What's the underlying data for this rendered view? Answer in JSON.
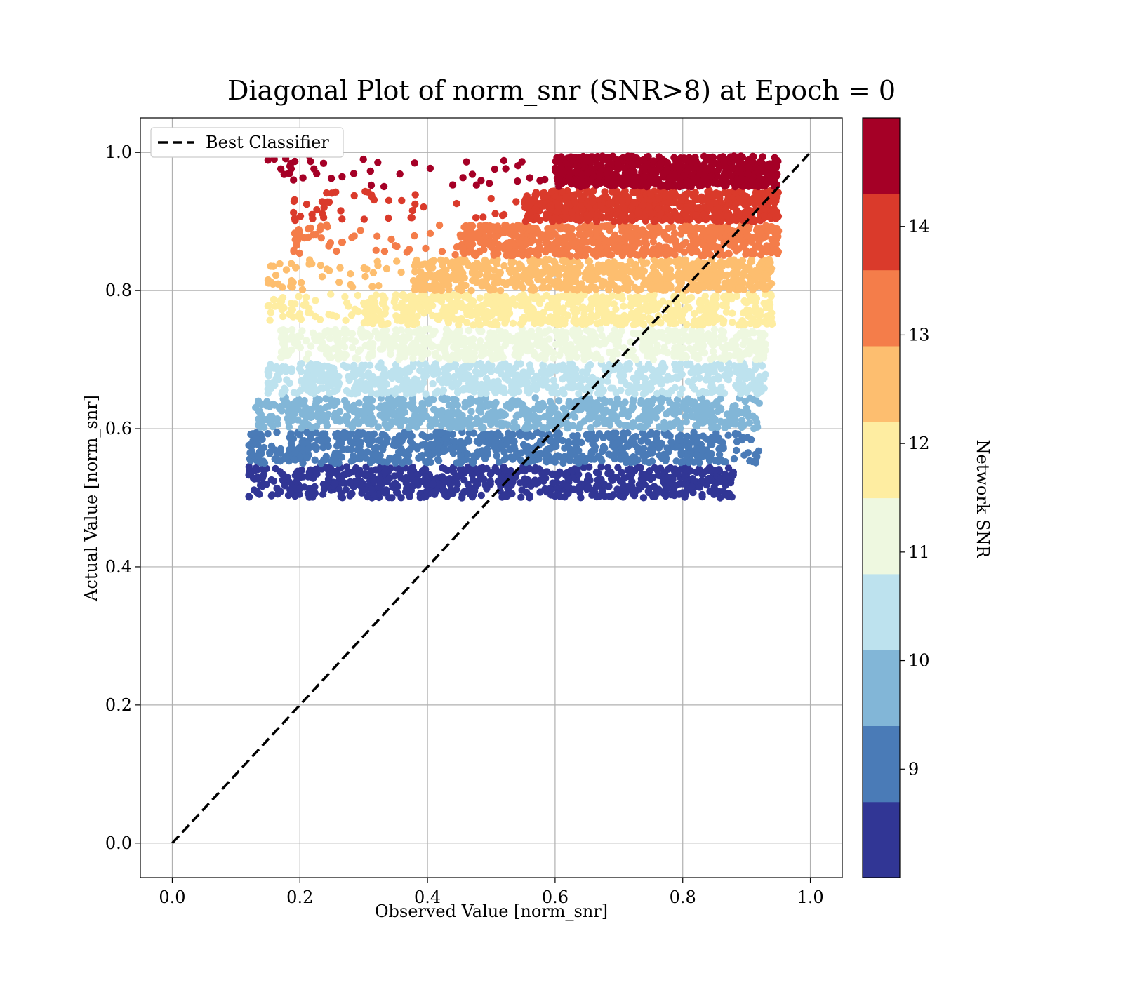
{
  "chart_data": {
    "type": "scatter",
    "title": "Diagonal Plot of norm_snr (SNR>8) at Epoch = 0",
    "xlabel": "Observed Value [norm_snr]",
    "ylabel": "Actual Value [norm_snr]",
    "xlim": [
      -0.05,
      1.05
    ],
    "ylim": [
      -0.05,
      1.05
    ],
    "xticks": [
      "0.0",
      "0.2",
      "0.4",
      "0.6",
      "0.8",
      "1.0"
    ],
    "yticks": [
      "0.0",
      "0.2",
      "0.4",
      "0.6",
      "0.8",
      "1.0"
    ],
    "grid": true,
    "legend": {
      "position": "top-left",
      "entries": [
        {
          "label": "Best Classifier",
          "style": "dashed",
          "color": "#000000"
        }
      ]
    },
    "diagonal_line": {
      "x": [
        0,
        1
      ],
      "y": [
        0,
        1
      ]
    },
    "colorbar": {
      "label": "Network SNR",
      "range": [
        8,
        15
      ],
      "ticks": [
        "9",
        "10",
        "11",
        "12",
        "13",
        "14"
      ],
      "colors": [
        "#313695",
        "#4a7bb7",
        "#82b6d7",
        "#bde2ee",
        "#eef8e0",
        "#feeda1",
        "#fdbe6f",
        "#f47d4a",
        "#da3a2b",
        "#a50026"
      ]
    },
    "bands": [
      {
        "y_range": [
          0.5,
          0.545
        ],
        "x_core": [
          0.18,
          0.86
        ],
        "x_tail": [
          0.12,
          0.88
        ],
        "color": "#313695"
      },
      {
        "y_range": [
          0.55,
          0.595
        ],
        "x_core": [
          0.18,
          0.87
        ],
        "x_tail": [
          0.12,
          0.92
        ],
        "color": "#4a7bb7"
      },
      {
        "y_range": [
          0.6,
          0.645
        ],
        "x_core": [
          0.19,
          0.89
        ],
        "x_tail": [
          0.13,
          0.92
        ],
        "color": "#82b6d7"
      },
      {
        "y_range": [
          0.65,
          0.695
        ],
        "x_core": [
          0.2,
          0.91
        ],
        "x_tail": [
          0.15,
          0.93
        ],
        "color": "#bde2ee"
      },
      {
        "y_range": [
          0.7,
          0.745
        ],
        "x_core": [
          0.23,
          0.92
        ],
        "x_tail": [
          0.17,
          0.93
        ],
        "color": "#eef8e0"
      },
      {
        "y_range": [
          0.75,
          0.795
        ],
        "x_core": [
          0.3,
          0.93
        ],
        "x_tail": [
          0.15,
          0.94
        ],
        "color": "#feeda1"
      },
      {
        "y_range": [
          0.8,
          0.845
        ],
        "x_core": [
          0.38,
          0.93
        ],
        "x_tail": [
          0.15,
          0.94
        ],
        "color": "#fdbe6f"
      },
      {
        "y_range": [
          0.85,
          0.895
        ],
        "x_core": [
          0.45,
          0.94
        ],
        "x_tail": [
          0.19,
          0.95
        ],
        "color": "#f47d4a"
      },
      {
        "y_range": [
          0.9,
          0.945
        ],
        "x_core": [
          0.55,
          0.94
        ],
        "x_tail": [
          0.19,
          0.95
        ],
        "color": "#da3a2b"
      },
      {
        "y_range": [
          0.95,
          0.995
        ],
        "x_core": [
          0.6,
          0.94
        ],
        "x_tail": [
          0.15,
          0.95
        ],
        "color": "#a50026"
      }
    ]
  }
}
